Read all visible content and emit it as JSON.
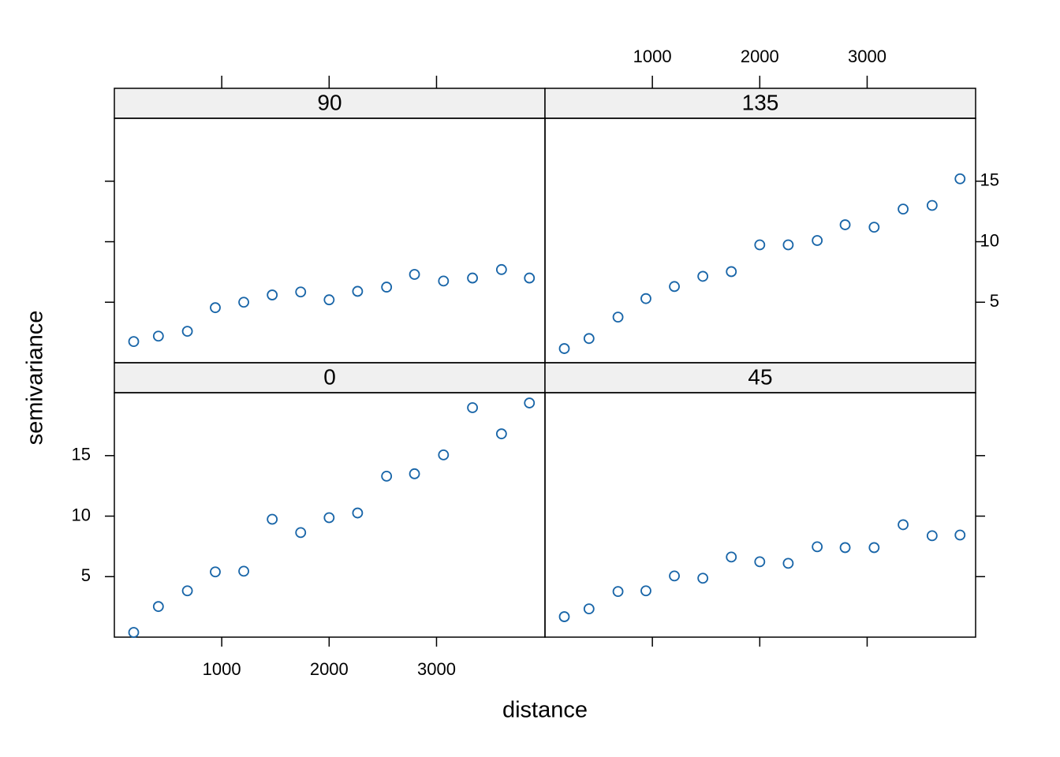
{
  "chart_data": [
    {
      "type": "scatter",
      "title": "0",
      "xlabel": "distance",
      "ylabel": "semivariance",
      "color": "#1865a8",
      "x": [
        180,
        410,
        680,
        940,
        1205,
        1470,
        1735,
        2000,
        2265,
        2535,
        2795,
        3065,
        3335,
        3605,
        3865
      ],
      "values": [
        0.39,
        2.53,
        3.83,
        5.39,
        5.45,
        9.74,
        8.64,
        9.87,
        10.26,
        13.3,
        13.5,
        15.06,
        18.96,
        16.8,
        19.35
      ],
      "xlim": [
        0,
        4010
      ],
      "ylim": [
        0,
        20.2
      ],
      "xticks": [
        1000,
        2000,
        3000
      ],
      "yticks": [
        5,
        10,
        15
      ]
    },
    {
      "type": "scatter",
      "title": "45",
      "color": "#1865a8",
      "x": [
        180,
        410,
        680,
        940,
        1205,
        1470,
        1735,
        2000,
        2265,
        2535,
        2795,
        3065,
        3335,
        3605,
        3865
      ],
      "values": [
        1.69,
        2.34,
        3.77,
        3.83,
        5.06,
        4.87,
        6.62,
        6.23,
        6.1,
        7.47,
        7.4,
        7.4,
        9.29,
        8.38,
        8.44
      ],
      "xlim": [
        0,
        4010
      ],
      "ylim": [
        0,
        20.2
      ],
      "xticks": [
        1000,
        2000,
        3000
      ],
      "yticks": [
        5,
        10,
        15
      ]
    },
    {
      "type": "scatter",
      "title": "90",
      "color": "#1865a8",
      "x": [
        180,
        410,
        680,
        940,
        1205,
        1470,
        1735,
        2000,
        2265,
        2535,
        2795,
        3065,
        3335,
        3605,
        3865
      ],
      "values": [
        1.75,
        2.2,
        2.6,
        4.55,
        5.0,
        5.6,
        5.85,
        5.2,
        5.9,
        6.25,
        7.3,
        6.75,
        7.0,
        7.7,
        7.0
      ],
      "xlim": [
        0,
        4010
      ],
      "ylim": [
        0,
        20.2
      ],
      "xticks": [
        1000,
        2000,
        3000
      ],
      "yticks": [
        5,
        10,
        15
      ]
    },
    {
      "type": "scatter",
      "title": "135",
      "color": "#1865a8",
      "x": [
        180,
        410,
        680,
        940,
        1205,
        1470,
        1735,
        2000,
        2265,
        2535,
        2795,
        3065,
        3335,
        3605,
        3865
      ],
      "values": [
        1.17,
        2.0,
        3.77,
        5.3,
        6.3,
        7.14,
        7.53,
        9.74,
        9.74,
        10.1,
        11.4,
        11.2,
        12.7,
        13.0,
        15.2
      ],
      "xlim": [
        0,
        4010
      ],
      "ylim": [
        0,
        20.2
      ],
      "xticks": [
        1000,
        2000,
        3000
      ],
      "yticks": [
        5,
        10,
        15
      ]
    }
  ]
}
